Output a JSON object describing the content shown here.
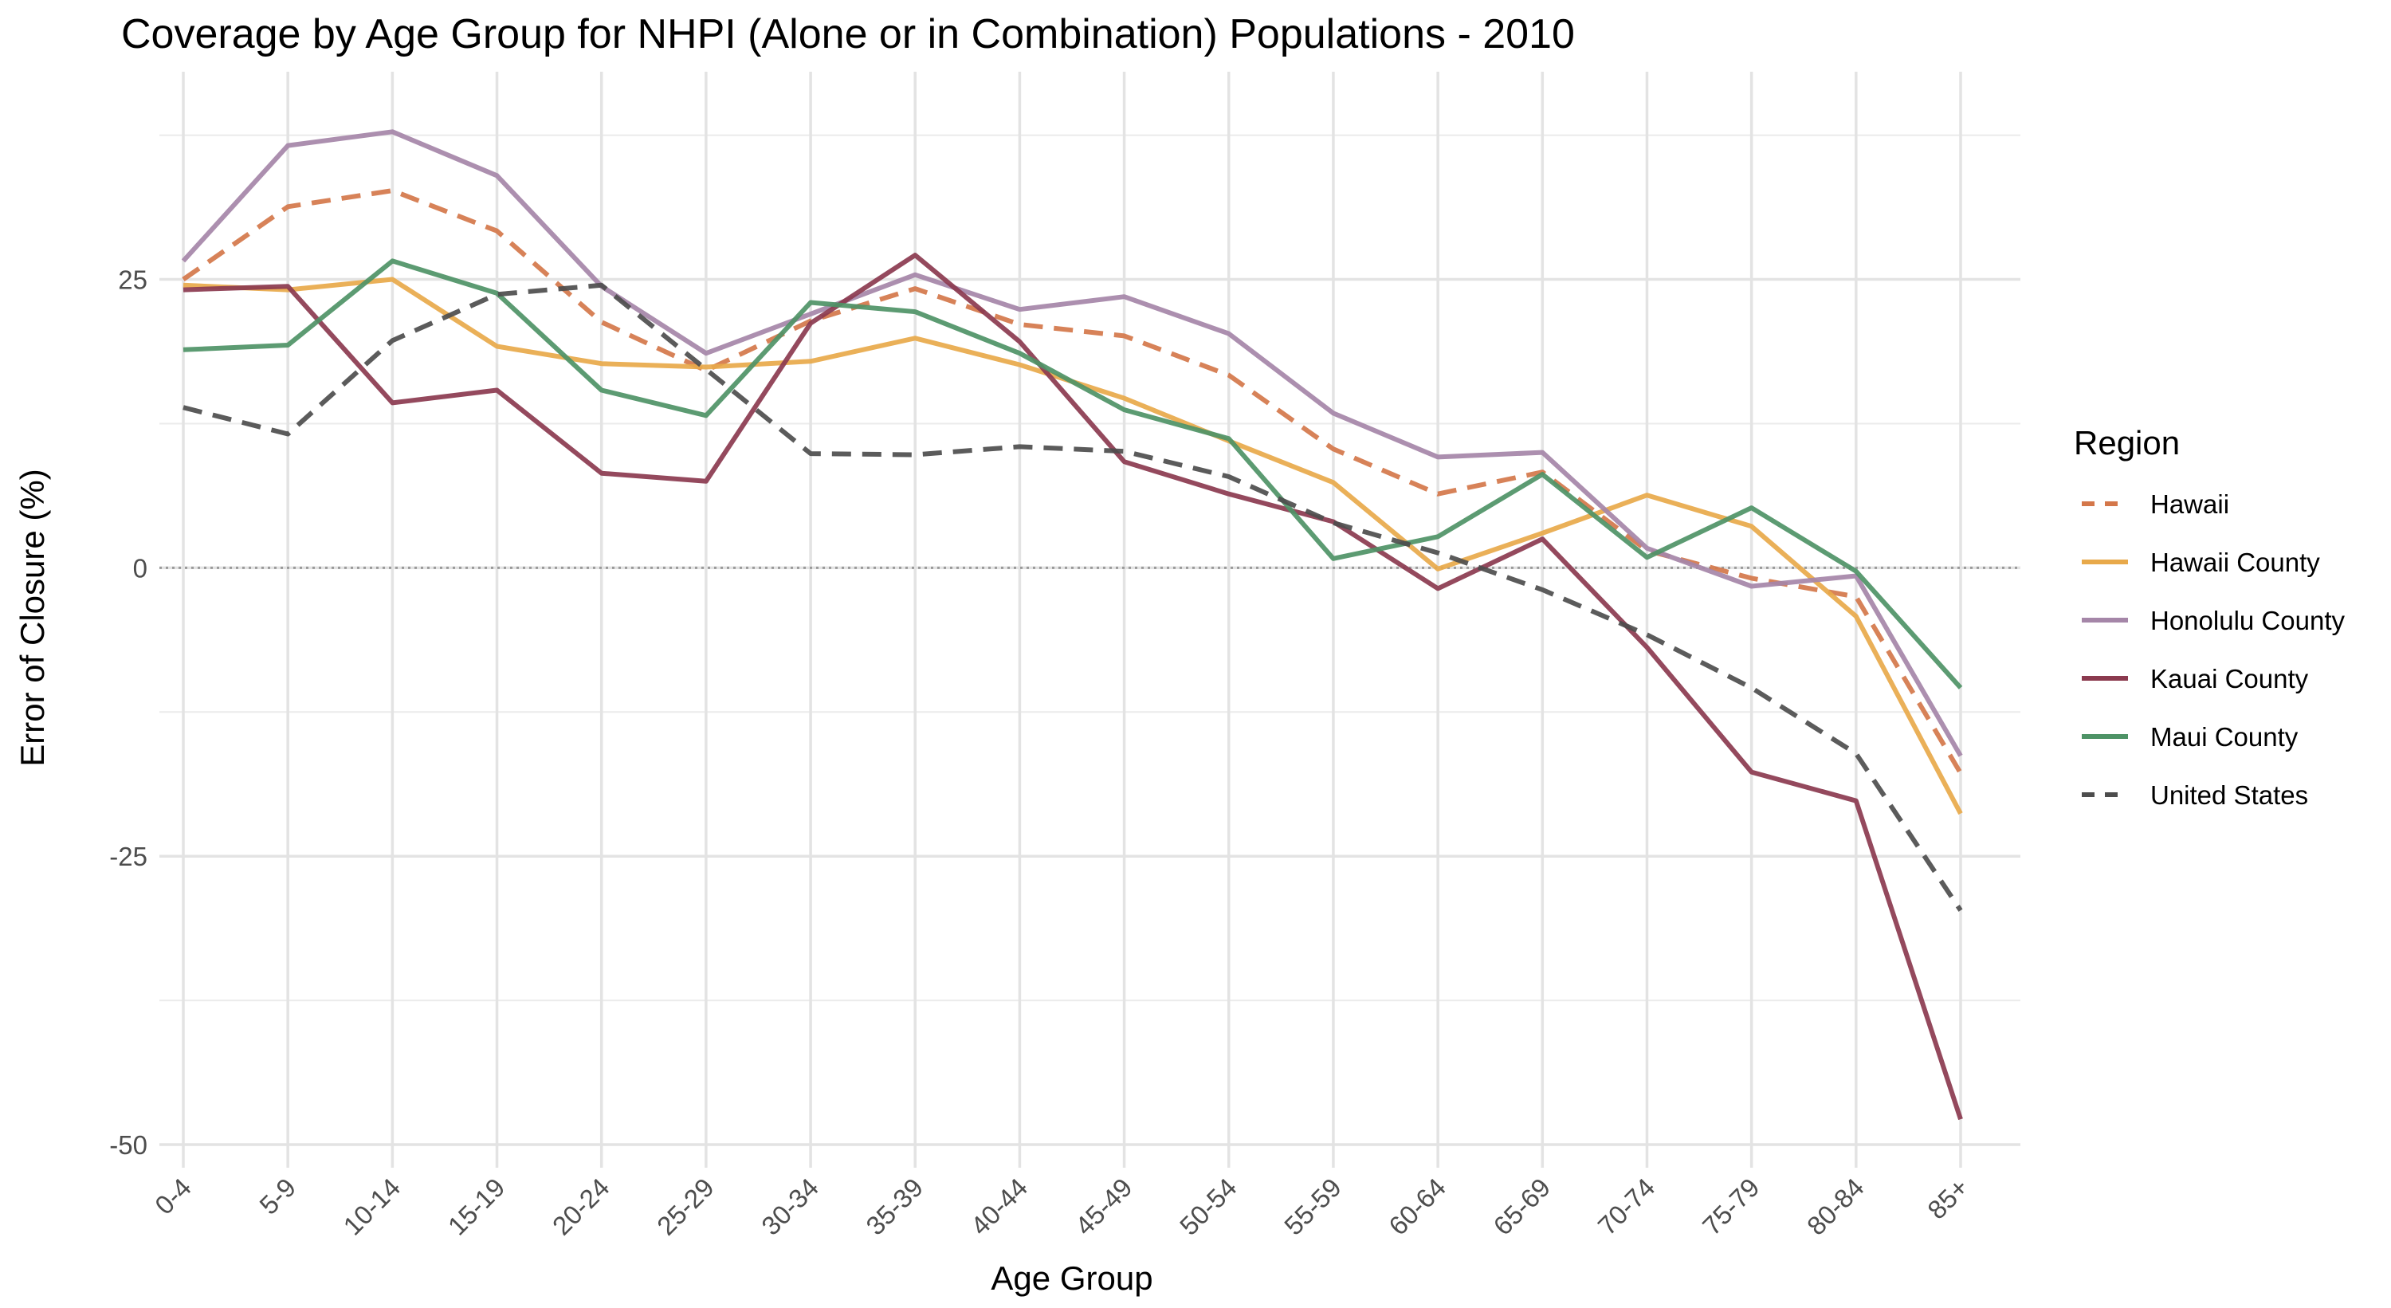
{
  "chart_data": {
    "type": "line",
    "title": "Coverage by Age Group for NHPI (Alone or in Combination) Populations - 2010",
    "xlabel": "Age Group",
    "ylabel": "Error of Closure (%)",
    "ylim": [
      -52,
      43
    ],
    "yticks": [
      -50,
      -25,
      0,
      25
    ],
    "ytick_labels": [
      "-50",
      "-25",
      "0",
      "25"
    ],
    "grid": true,
    "zero_line": true,
    "legend_title": "Region",
    "legend_position": "right",
    "categories": [
      "0-4",
      "5-9",
      "10-14",
      "15-19",
      "20-24",
      "25-29",
      "30-34",
      "35-39",
      "40-44",
      "45-49",
      "50-54",
      "55-59",
      "60-64",
      "65-69",
      "70-74",
      "75-79",
      "80-84",
      "85+"
    ],
    "series": [
      {
        "name": "Hawaii",
        "color": "#d4774a",
        "dashed": true,
        "values": [
          25.0,
          31.3,
          32.7,
          29.2,
          21.3,
          17.1,
          21.4,
          24.2,
          21.1,
          20.1,
          16.7,
          10.3,
          6.4,
          8.3,
          1.5,
          -0.9,
          -2.5,
          -17.8
        ]
      },
      {
        "name": "Hawaii County",
        "color": "#e8a94a",
        "dashed": false,
        "values": [
          24.5,
          24.1,
          25.0,
          19.2,
          17.7,
          17.4,
          17.9,
          19.9,
          17.6,
          14.7,
          11.0,
          7.4,
          -0.1,
          3.0,
          6.3,
          3.6,
          -4.2,
          -21.3
        ]
      },
      {
        "name": "Honolulu County",
        "color": "#a586a8",
        "dashed": false,
        "values": [
          26.6,
          36.6,
          37.8,
          34.0,
          24.4,
          18.6,
          22.0,
          25.4,
          22.4,
          23.5,
          20.3,
          13.4,
          9.6,
          10.0,
          1.7,
          -1.6,
          -0.7,
          -16.3
        ]
      },
      {
        "name": "Kauai County",
        "color": "#8b3a4f",
        "dashed": false,
        "values": [
          24.1,
          24.4,
          14.3,
          15.4,
          8.2,
          7.5,
          21.2,
          27.1,
          19.6,
          9.2,
          6.4,
          4.0,
          -1.8,
          2.5,
          -6.9,
          -17.7,
          -20.2,
          -47.8
        ]
      },
      {
        "name": "Maui County",
        "color": "#4e9366",
        "dashed": false,
        "values": [
          18.9,
          19.3,
          26.6,
          23.8,
          15.4,
          13.2,
          23.0,
          22.2,
          18.6,
          13.7,
          11.2,
          0.8,
          2.7,
          8.1,
          0.9,
          5.2,
          -0.3,
          -10.4
        ]
      },
      {
        "name": "United States",
        "color": "#4d4d4d",
        "dashed": true,
        "values": [
          13.9,
          11.6,
          19.7,
          23.7,
          24.5,
          17.2,
          9.9,
          9.8,
          10.5,
          10.1,
          7.9,
          3.9,
          1.3,
          -1.9,
          -5.8,
          -10.4,
          -16.1,
          -29.7
        ]
      }
    ]
  }
}
